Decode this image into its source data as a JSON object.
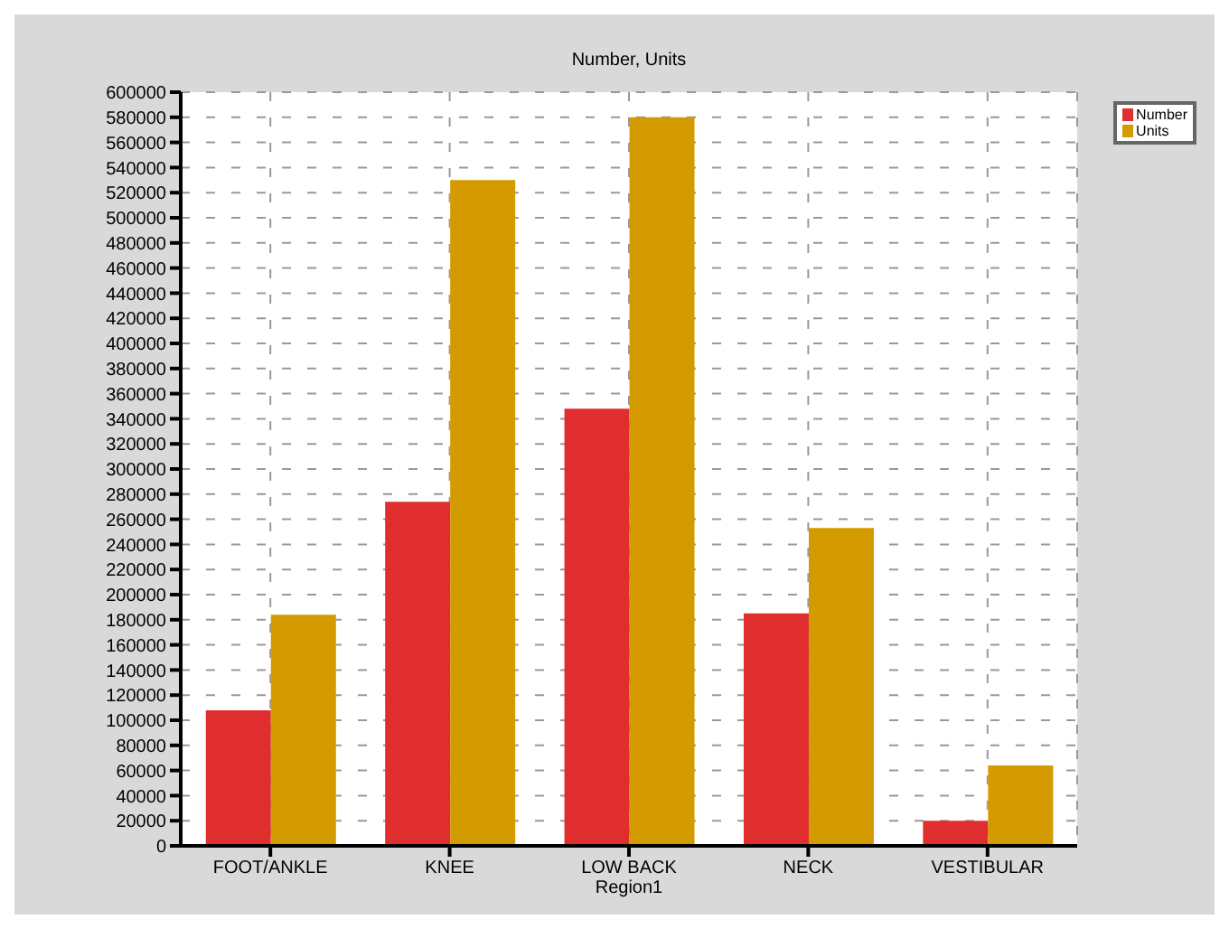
{
  "chart_data": {
    "type": "bar",
    "title": "Number, Units",
    "xlabel": "Region1",
    "categories": [
      "FOOT/ANKLE",
      "KNEE",
      "LOW BACK",
      "NECK",
      "VESTIBULAR"
    ],
    "series": [
      {
        "name": "Number",
        "color": "#e02e2e",
        "values": [
          108000,
          274000,
          348000,
          185000,
          20000
        ]
      },
      {
        "name": "Units",
        "color": "#d49b00",
        "values": [
          184000,
          530000,
          580000,
          253000,
          64000
        ]
      }
    ],
    "ylim": [
      0,
      600000
    ],
    "yticks": [
      0,
      20000,
      40000,
      60000,
      80000,
      100000,
      120000,
      140000,
      160000,
      180000,
      200000,
      220000,
      240000,
      260000,
      280000,
      300000,
      320000,
      340000,
      360000,
      380000,
      400000,
      420000,
      440000,
      460000,
      480000,
      500000,
      520000,
      540000,
      560000,
      580000,
      600000
    ],
    "grid": true,
    "legend": "top right"
  }
}
